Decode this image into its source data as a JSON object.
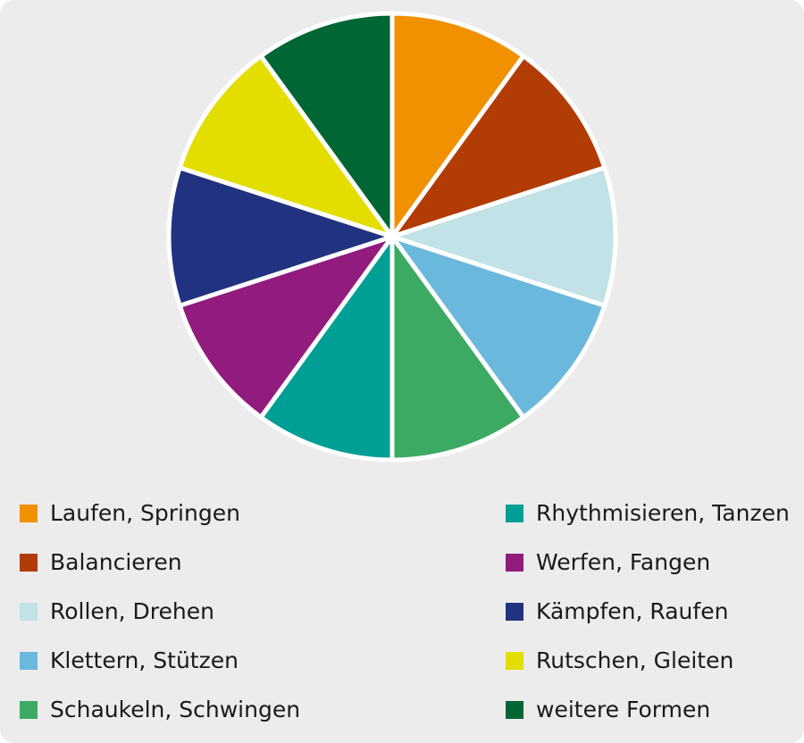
{
  "chart_data": {
    "type": "pie",
    "title": "",
    "slices": [
      {
        "label": "Laufen, Springen",
        "value": 10,
        "color": "#f29100"
      },
      {
        "label": "Balancieren",
        "value": 10,
        "color": "#b23c05"
      },
      {
        "label": "Rollen, Drehen",
        "value": 10,
        "color": "#c1e2e6"
      },
      {
        "label": "Klettern, Stützen",
        "value": 10,
        "color": "#6bb8dd"
      },
      {
        "label": "Schaukeln, Schwingen",
        "value": 10,
        "color": "#3caa63"
      },
      {
        "label": "Rhythmisieren, Tanzen",
        "value": 10,
        "color": "#009f95"
      },
      {
        "label": "Werfen, Fangen",
        "value": 10,
        "color": "#921b7e"
      },
      {
        "label": "Kämpfen, Raufen",
        "value": 10,
        "color": "#213380"
      },
      {
        "label": "Rutschen, Gleiten",
        "value": 10,
        "color": "#e3de00"
      },
      {
        "label": "weitere Formen",
        "value": 10,
        "color": "#006633"
      }
    ],
    "legend_position": "bottom",
    "start": "top",
    "direction": "clockwise"
  }
}
